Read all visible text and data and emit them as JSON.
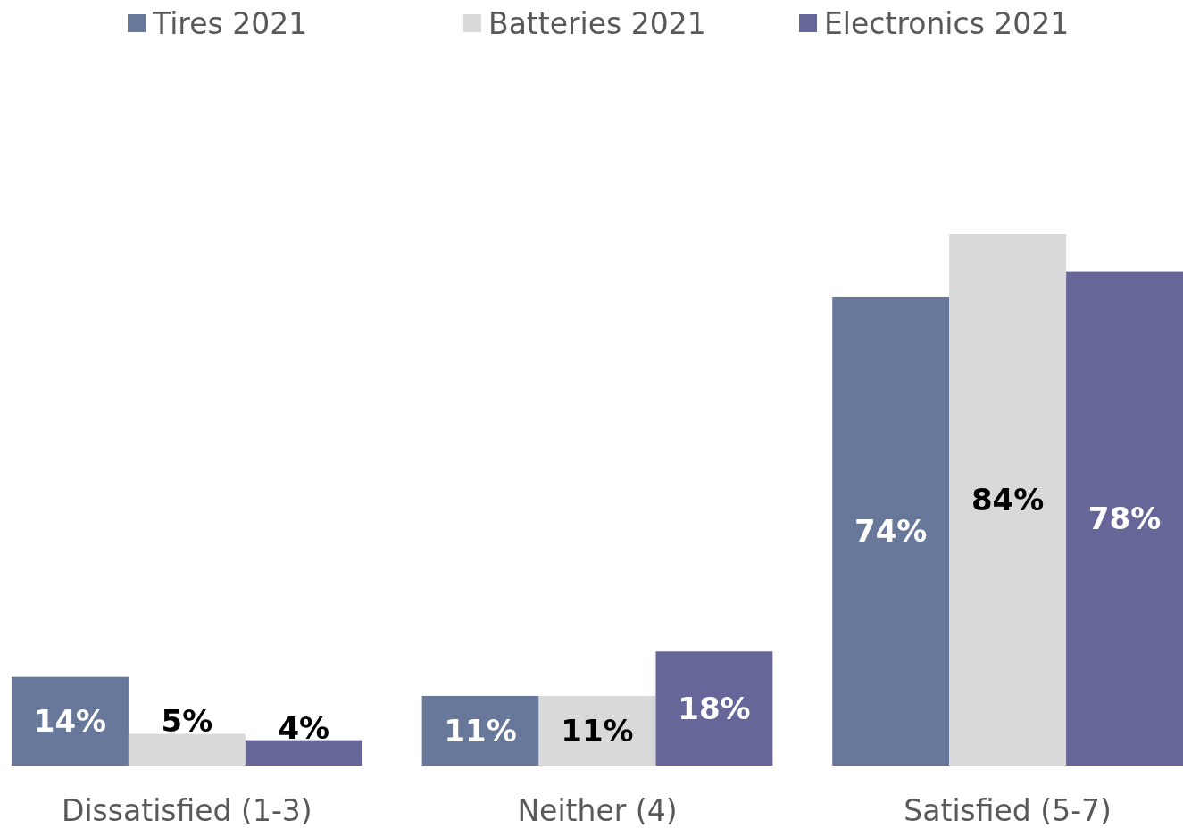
{
  "chart_data": {
    "type": "bar",
    "categories": [
      "Dissatisfied (1-3)",
      "Neither (4)",
      "Satisfied (5-7)"
    ],
    "series": [
      {
        "name": "Tires 2021",
        "color": "#67789a",
        "values": [
          14,
          11,
          74
        ],
        "value_labels": [
          "14%",
          "11%",
          "74%"
        ]
      },
      {
        "name": "Batteries 2021",
        "color": "#d9d9d9",
        "values": [
          5,
          11,
          84
        ],
        "value_labels": [
          "5%",
          "11%",
          "84%"
        ]
      },
      {
        "name": "Electronics 2021",
        "color": "#666699",
        "values": [
          4,
          18,
          78
        ],
        "value_labels": [
          "4%",
          "18%",
          "78%"
        ]
      }
    ],
    "legend": "top"
  }
}
